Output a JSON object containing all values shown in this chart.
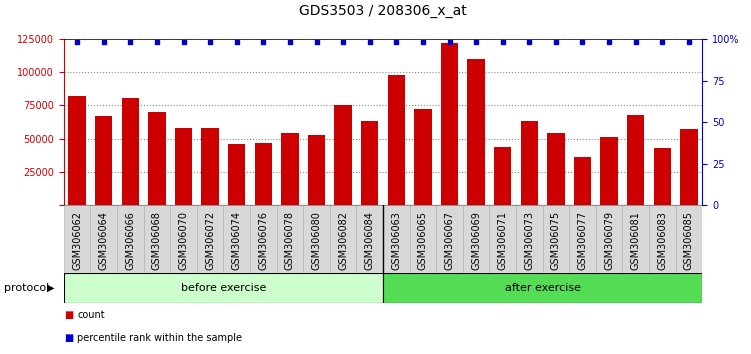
{
  "title": "GDS3503 / 208306_x_at",
  "categories": [
    "GSM306062",
    "GSM306064",
    "GSM306066",
    "GSM306068",
    "GSM306070",
    "GSM306072",
    "GSM306074",
    "GSM306076",
    "GSM306078",
    "GSM306080",
    "GSM306082",
    "GSM306084",
    "GSM306063",
    "GSM306065",
    "GSM306067",
    "GSM306069",
    "GSM306071",
    "GSM306073",
    "GSM306075",
    "GSM306077",
    "GSM306079",
    "GSM306081",
    "GSM306083",
    "GSM306085"
  ],
  "values": [
    82000,
    67000,
    81000,
    70000,
    58000,
    58000,
    46000,
    47000,
    54000,
    53000,
    75000,
    63000,
    98000,
    72000,
    122000,
    110000,
    44000,
    63000,
    54000,
    36000,
    51000,
    68000,
    43000,
    57000
  ],
  "percentile_values": [
    98,
    98,
    98,
    98,
    98,
    98,
    98,
    98,
    98,
    98,
    98,
    98,
    98,
    98,
    98,
    98,
    98,
    98,
    98,
    98,
    98,
    98,
    98,
    98
  ],
  "bar_color": "#cc0000",
  "dot_color": "#0000cc",
  "ylim_left": [
    0,
    125000
  ],
  "ylim_right": [
    0,
    100
  ],
  "yticks_left": [
    0,
    25000,
    50000,
    75000,
    100000,
    125000
  ],
  "ytick_labels_left": [
    "",
    "25000",
    "50000",
    "75000",
    "100000",
    "125000"
  ],
  "yticks_right": [
    0,
    25,
    50,
    75,
    100
  ],
  "ytick_labels_right": [
    "0",
    "25",
    "50",
    "75",
    "100%"
  ],
  "before_exercise_count": 12,
  "after_exercise_count": 12,
  "before_color": "#ccffcc",
  "after_color": "#55dd55",
  "protocol_label": "protocol",
  "before_label": "before exercise",
  "after_label": "after exercise",
  "legend_count_label": "count",
  "legend_percentile_label": "percentile rank within the sample",
  "title_fontsize": 10,
  "tick_fontsize": 7,
  "grid_color": "#888888",
  "ticklabel_bg": "#d8d8d8",
  "figure_bg": "#ffffff"
}
